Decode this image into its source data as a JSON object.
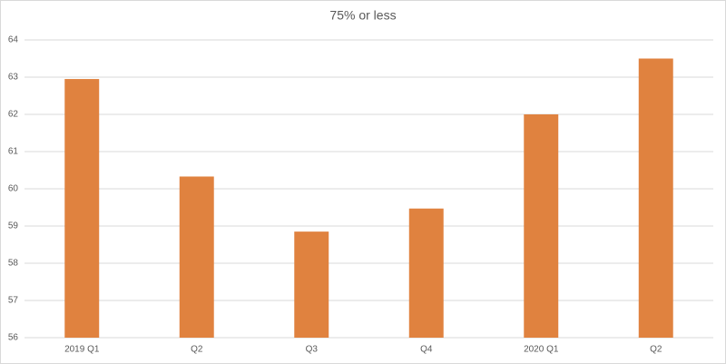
{
  "chart_data": {
    "type": "bar",
    "title": "75% or less",
    "categories": [
      "2019 Q1",
      "Q2",
      "Q3",
      "Q4",
      "2020 Q1",
      "Q2"
    ],
    "values": [
      62.95,
      60.33,
      58.85,
      59.47,
      62.0,
      63.5
    ],
    "color": "#e0823f",
    "ylim": [
      56,
      64
    ],
    "yticks": [
      56,
      57,
      58,
      59,
      60,
      61,
      62,
      63,
      64
    ],
    "grid": true
  }
}
